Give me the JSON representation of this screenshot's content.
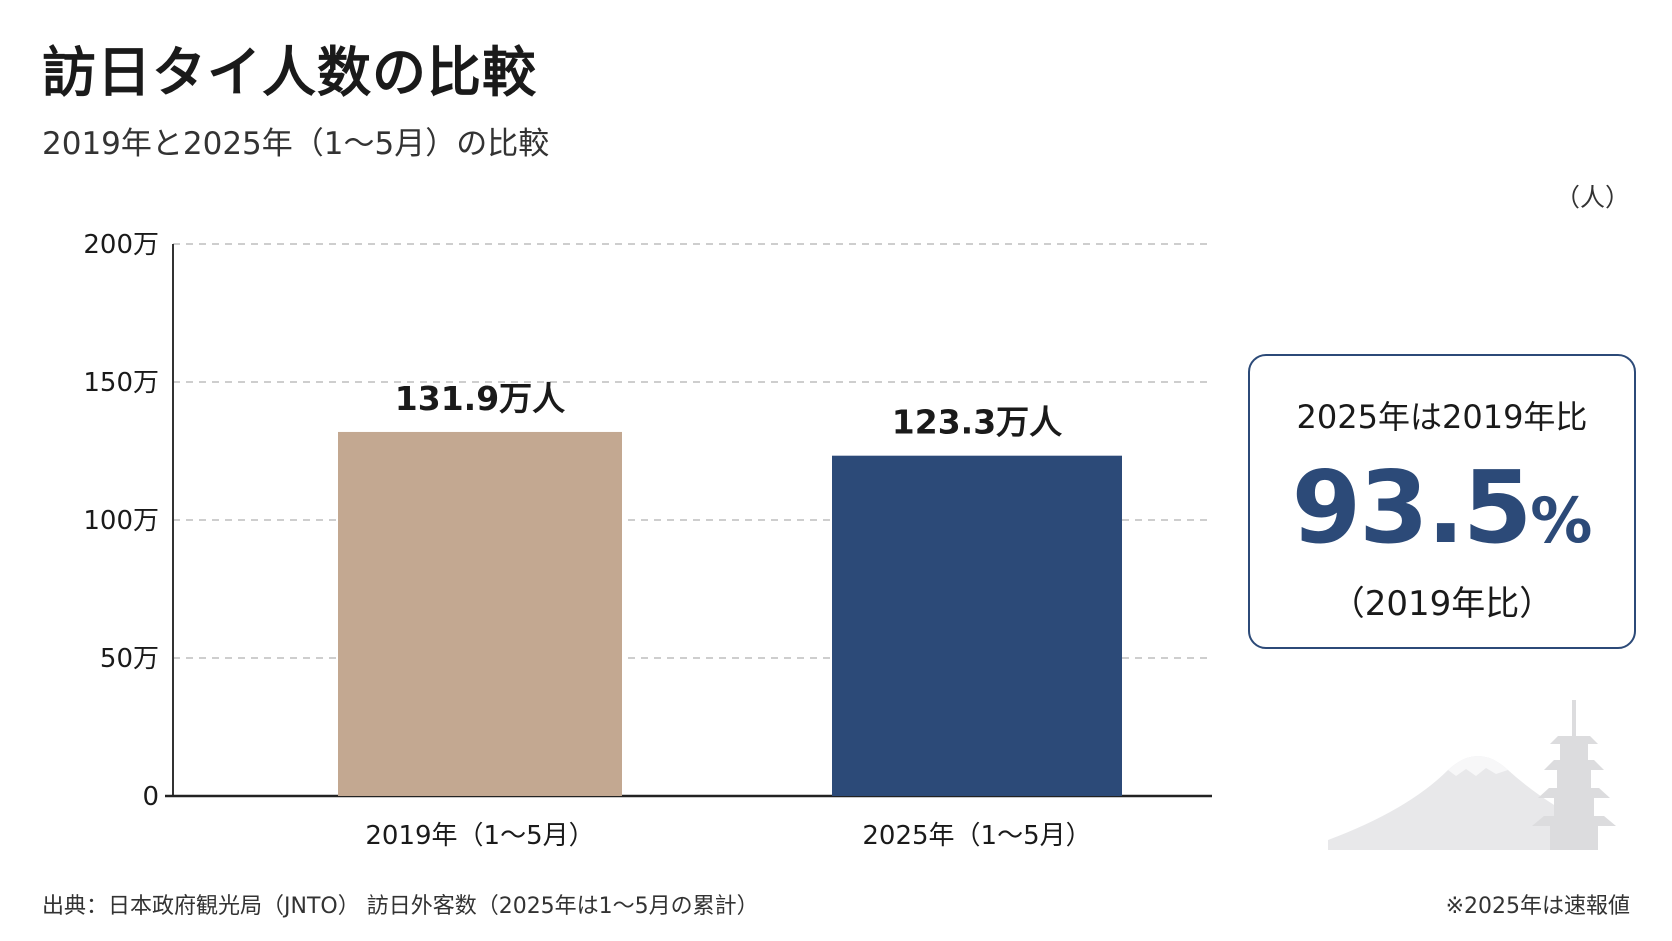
{
  "header": {
    "title": "訪日タイ人数の比較",
    "subtitle": "2019年と2025年（1～5月）の比較",
    "unit": "（人）"
  },
  "chart_data": {
    "type": "bar",
    "title": "訪日タイ人数の比較",
    "subtitle": "2019年と2025年（1～5月）の比較",
    "ylabel": "（人）",
    "categories": [
      "2019年（1～5月）",
      "2025年（1～5月）"
    ],
    "values": [
      1319000,
      1233000
    ],
    "value_labels": [
      "131.9万人",
      "123.3万人"
    ],
    "bar_colors": [
      "#c3a891",
      "#2c4a78"
    ],
    "ylim": [
      0,
      2000000
    ],
    "yticks": [
      {
        "value": 0,
        "label": "0"
      },
      {
        "value": 500000,
        "label": "50万"
      },
      {
        "value": 1000000,
        "label": "100万"
      },
      {
        "value": 1500000,
        "label": "150万"
      },
      {
        "value": 2000000,
        "label": "200万"
      }
    ],
    "grid": true,
    "grid_style": "dashed"
  },
  "callout": {
    "heading": "2025年は2019年比",
    "value": "93.5",
    "unit": "%",
    "sub": "（2019年比）",
    "color": "#2c4a78"
  },
  "footer": {
    "source": "出典：日本政府観光局（JNTO） 訪日外客数（2025年は1～5月の累計）",
    "note": "※2025年は速報値"
  },
  "decoration": {
    "icons": [
      "mount-fuji-icon",
      "pagoda-icon"
    ]
  }
}
